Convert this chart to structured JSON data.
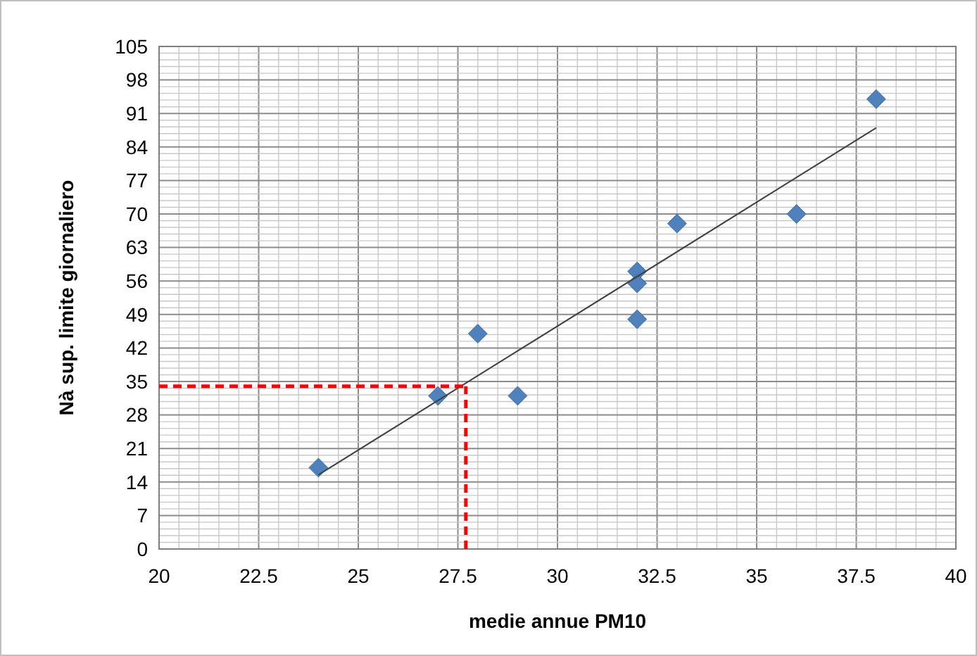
{
  "chart_data": {
    "type": "scatter",
    "xlabel": "medie annue PM10",
    "ylabel": "Nà sup. limite giornaliero",
    "xlim": [
      20,
      40
    ],
    "xticks": [
      20,
      22.5,
      25,
      27.5,
      30,
      32.5,
      35,
      37.5,
      40
    ],
    "ylim": [
      0,
      105
    ],
    "yticks": [
      0,
      7,
      14,
      21,
      28,
      35,
      42,
      49,
      56,
      63,
      70,
      77,
      84,
      91,
      98,
      105
    ],
    "grid": true,
    "series": [
      {
        "marker": "diamond",
        "color": "#4f81bd",
        "x": [
          24,
          27,
          28,
          29,
          32,
          32,
          32,
          33,
          36,
          38
        ],
        "values": [
          17,
          32,
          45,
          32,
          58,
          55.5,
          48,
          68,
          70,
          94
        ]
      },
      {
        "type": "line",
        "marker": "none",
        "color": "#404040",
        "x": [
          24,
          38
        ],
        "values": [
          15.5,
          88
        ]
      }
    ],
    "ref_lines": [
      {
        "axis": "y",
        "value": 34,
        "color": "#ff0000",
        "line_style": "dashed"
      },
      {
        "axis": "x",
        "value": 27.7,
        "color": "#ff0000",
        "line_style": "dashed"
      }
    ]
  }
}
